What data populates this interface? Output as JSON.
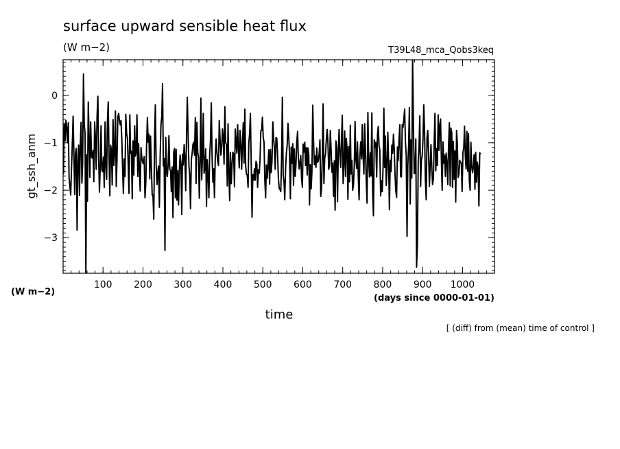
{
  "header": {
    "title": "surface upward sensible heat flux",
    "units": "(W m−2)",
    "run_name": "T39L48_mca_Qobs3keq"
  },
  "footer": {
    "left_units": "(W m−2)",
    "note": "[ (diff) from (mean) time of control ]"
  },
  "chart_data": {
    "type": "line",
    "title": "surface upward sensible heat flux",
    "xlabel": "time",
    "xunits": "(days since 0000-01-01)",
    "ylabel": "gt_ssh_anm",
    "yunits": "(W m−2)",
    "xlim": [
      0,
      1080
    ],
    "ylim": [
      -3.75,
      0.75
    ],
    "x_ticks": [
      100,
      200,
      300,
      400,
      500,
      600,
      700,
      800,
      900,
      1000
    ],
    "x_tick_labels": [
      "100",
      "200",
      "300",
      "400",
      "500",
      "600",
      "700",
      "800",
      "900",
      "1000"
    ],
    "y_ticks": [
      0,
      -1,
      -2,
      -3
    ],
    "y_tick_labels": [
      "0",
      "−1",
      "−2",
      "−3"
    ],
    "line_color": "#000000",
    "series": [
      {
        "x_start": 1,
        "x_step": 2,
        "values": [
          -1.66,
          -0.6,
          -0.96,
          -0.53,
          -0.66,
          -1.0,
          -0.58,
          -1.73,
          -1.92,
          -2.1,
          -1.57,
          -1.04,
          -0.44,
          -1.19,
          -2.09,
          -1.23,
          -1.12,
          -2.84,
          -1.43,
          -1.05,
          -2.11,
          -1.08,
          -0.57,
          -1.85,
          -1.44,
          0.45,
          -0.64,
          -0.78,
          -3.8,
          -1.25,
          -2.23,
          -0.14,
          -0.86,
          -1.73,
          -0.56,
          -1.29,
          -1.32,
          -1.16,
          -1.82,
          -0.56,
          -0.91,
          -1.56,
          -0.45,
          -0.02,
          -1.3,
          -2.04,
          -1.48,
          -0.64,
          -1.58,
          -1.61,
          -1.3,
          -1.94,
          -0.56,
          -1.48,
          -1.77,
          -0.57,
          -0.14,
          -1.3,
          -2.12,
          -1.05,
          -1.16,
          -1.89,
          -0.51,
          -1.48,
          -1.22,
          -0.33,
          -1.92,
          -1.35,
          -0.46,
          -0.38,
          -0.53,
          -0.62,
          -0.53,
          -0.92,
          -1.57,
          -2.07,
          -1.34,
          -1.71,
          -0.4,
          -0.8,
          -0.91,
          -1.42,
          -2.07,
          -0.41,
          -1.22,
          -1.18,
          -2.18,
          -0.96,
          -1.68,
          -0.64,
          -1.28,
          -1.2,
          -0.41,
          -1.71,
          -1.02,
          -1.54,
          -2.02,
          -1.1,
          -1.3,
          -1.42,
          -1.44,
          -1.29,
          -2.16,
          -1.85,
          -1.08,
          -0.47,
          -0.99,
          -0.82,
          -1.76,
          -0.86,
          -1.51,
          -2.1,
          -2.1,
          -2.61,
          -0.88,
          -0.2,
          -1.47,
          -1.88,
          -1.63,
          -1.49,
          -2.36,
          -1.3,
          -0.62,
          -0.45,
          0.25,
          -1.49,
          -1.33,
          -3.27,
          -0.89,
          -1.61,
          -1.71,
          -1.44,
          -0.85,
          -1.55,
          -1.59,
          -2.03,
          -1.51,
          -2.58,
          -1.2,
          -1.12,
          -2.16,
          -1.14,
          -2.21,
          -1.59,
          -2.31,
          -1.58,
          -1.26,
          -1.43,
          -2.51,
          -1.24,
          -1.47,
          -1.04,
          -1.3,
          -2.01,
          -0.83,
          -0.04,
          -0.85,
          -1.49,
          -1.68,
          -2.39,
          -1.35,
          -1.23,
          -1.04,
          -0.99,
          -1.26,
          -0.47,
          -1.86,
          -0.57,
          -1.2,
          -1.3,
          -2.17,
          -1.38,
          -0.06,
          -1.78,
          -1.28,
          -0.38,
          -1.64,
          -1.55,
          -1.13,
          -2.34,
          -1.36,
          -1.66,
          -2.16,
          -1.26,
          -0.94,
          -0.16,
          -1.28,
          -1.83,
          -1.55,
          -2.16,
          -1.29,
          -0.92,
          -1.2,
          -1.38,
          -1.48,
          -0.53,
          -0.94,
          -1.26,
          -1.1,
          -0.71,
          -0.88,
          -1.45,
          -0.24,
          -0.99,
          -1.04,
          -1.91,
          -0.6,
          -1.63,
          -2.22,
          -1.2,
          -1.86,
          -1.45,
          -1.2,
          -1.24,
          -1.93,
          -0.71,
          -0.96,
          -1.22,
          -0.62,
          -1.15,
          -1.53,
          -0.74,
          -1.0,
          -1.56,
          -1.02,
          -0.58,
          -1.43,
          -0.29,
          -1.49,
          -1.66,
          -1.68,
          -1.94,
          -1.0,
          -0.8,
          -0.38,
          -1.42,
          -2.57,
          -1.67,
          -1.79,
          -1.55,
          -1.79,
          -1.39,
          -1.45,
          -1.94,
          -1.57,
          -1.64,
          -1.38,
          -0.75,
          -0.74,
          -0.46,
          -0.89,
          -0.99,
          -1.78,
          -2.16,
          -1.47,
          -1.75,
          -1.47,
          -1.15,
          -1.87,
          -1.14,
          -1.63,
          -1.39,
          -0.56,
          -0.9,
          -1.11,
          -1.56,
          -0.89,
          -0.91,
          -1.28,
          -1.75,
          -1.96,
          -1.98,
          -2.03,
          -1.33,
          -0.04,
          -1.69,
          -1.82,
          -2.2,
          -1.54,
          -1.21,
          -1.06,
          -0.59,
          -0.9,
          -1.25,
          -2.18,
          -1.09,
          -1.43,
          -1.02,
          -1.9,
          -1.13,
          -1.71,
          -1.48,
          -0.99,
          -0.76,
          -1.32,
          -1.55,
          -1.41,
          -1.27,
          -1.75,
          -1.94,
          -1.03,
          -1.2,
          -0.99,
          -1.48,
          -1.1,
          -1.68,
          -1.11,
          -1.26,
          -2.31,
          -1.46,
          -1.97,
          -1.62,
          -0.21,
          -0.97,
          -1.46,
          -1.28,
          -1.52,
          -1.11,
          -1.41,
          -1.39,
          -1.24,
          -0.94,
          -2.13,
          -1.97,
          -1.25,
          -0.18,
          -1.86,
          -1.31,
          -1.25,
          -0.94,
          -0.72,
          -0.97,
          -1.56,
          -1.49,
          -0.74,
          -1.15,
          -1.62,
          -1.43,
          -2.13,
          -1.38,
          -2.42,
          -0.96,
          -1.12,
          -2.24,
          -1.15,
          -0.72,
          -1.24,
          -1.52,
          -0.93,
          -0.42,
          -1.86,
          -1.48,
          -0.75,
          -1.71,
          -0.91,
          -1.13,
          -2.19,
          -1.08,
          -1.82,
          -0.63,
          -1.66,
          -1.37,
          -2.0,
          -1.89,
          -1.46,
          -0.55,
          -1.35,
          -1.54,
          -0.98,
          -1.72,
          -2.2,
          -1.27,
          -0.98,
          -1.34,
          -0.62,
          -1.29,
          -1.66,
          -0.6,
          -1.18,
          -1.8,
          -2.27,
          -0.36,
          -1.31,
          -1.72,
          -1.21,
          -1.7,
          -0.37,
          -2.07,
          -2.54,
          -0.94,
          -1.09,
          -0.99,
          -1.72,
          -0.83,
          -0.66,
          -1.06,
          -1.15,
          -2.12,
          -1.8,
          -2.03,
          -1.54,
          -0.27,
          -1.52,
          -0.86,
          -1.9,
          -1.54,
          -0.78,
          -1.47,
          -2.41,
          -1.37,
          -1.61,
          -1.05,
          -1.22,
          -0.82,
          -1.12,
          -1.68,
          -2.01,
          -2.15,
          -1.09,
          -1.38,
          -0.94,
          -0.62,
          -1.71,
          -1.72,
          -0.62,
          -0.68,
          -0.51,
          -0.29,
          -0.96,
          -1.27,
          -2.97,
          -1.48,
          -1.06,
          -0.26,
          -2.29,
          -0.94,
          -1.74,
          0.77,
          -0.62,
          -1.65,
          -1.64,
          -0.92,
          -3.62,
          -3.16,
          -1.38,
          -1.13,
          -0.43,
          -1.92,
          -1.36,
          -1.28,
          -0.95,
          -0.2,
          -0.79,
          -1.77,
          -2.2,
          -0.91,
          -0.74,
          -1.21,
          -1.92,
          -1.5,
          -1.04,
          -1.53,
          -1.88,
          -1.76,
          -0.99,
          -0.38,
          -1.59,
          -1.12,
          -1.48,
          -0.41,
          -1.16,
          -0.63,
          -0.5,
          -1.33,
          -2.0,
          -0.98,
          -1.43,
          -1.26,
          -1.71,
          -1.22,
          -1.41,
          -1.88,
          -1.08,
          -0.58,
          -1.91,
          -0.69,
          -0.79,
          -1.94,
          -0.97,
          -1.77,
          -1.17,
          -2.25,
          -0.74,
          -1.01,
          -1.73,
          -1.65,
          -1.37,
          -1.41,
          -1.44,
          -2.03,
          -1.2,
          -1.11,
          -0.65,
          -1.3,
          -1.55,
          -0.76,
          -1.6,
          -0.81,
          -1.8,
          -2.0,
          -0.99,
          -1.5,
          -1.63,
          -1.49,
          -1.25,
          -1.98,
          -1.2,
          -1.83,
          -1.41,
          -1.51,
          -2.33,
          -1.21,
          -1.24
        ]
      }
    ]
  }
}
